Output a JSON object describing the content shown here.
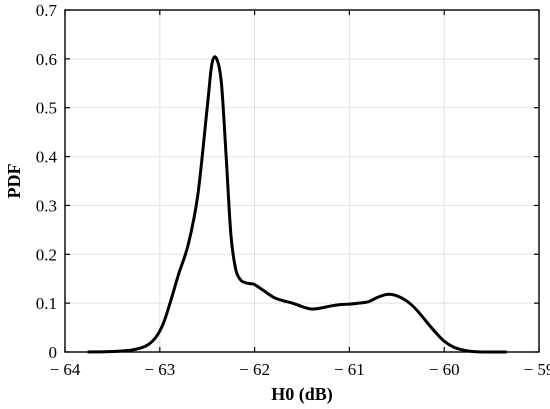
{
  "chart_data": {
    "type": "line",
    "title": "",
    "xlabel": "H0 (dB)",
    "ylabel": "PDF",
    "xlim": [
      -64,
      -59
    ],
    "ylim": [
      0,
      0.7
    ],
    "grid": true,
    "legend": "none",
    "line_color": "#000000",
    "x_ticks": [
      {
        "value": -64,
        "label": "− 64"
      },
      {
        "value": -63,
        "label": "− 63"
      },
      {
        "value": -62,
        "label": "− 62"
      },
      {
        "value": -61,
        "label": "− 61"
      },
      {
        "value": -60,
        "label": "− 60"
      },
      {
        "value": -59,
        "label": "− 59"
      }
    ],
    "y_ticks": [
      {
        "value": 0,
        "label": "0"
      },
      {
        "value": 0.1,
        "label": "0.1"
      },
      {
        "value": 0.2,
        "label": "0.2"
      },
      {
        "value": 0.3,
        "label": "0.3"
      },
      {
        "value": 0.4,
        "label": "0.4"
      },
      {
        "value": 0.5,
        "label": "0.5"
      },
      {
        "value": 0.6,
        "label": "0.6"
      },
      {
        "value": 0.7,
        "label": "0.7"
      }
    ],
    "series": [
      {
        "x": [
          -63.75,
          -63.5,
          -63.3,
          -63.15,
          -63.05,
          -62.97,
          -62.9,
          -62.8,
          -62.7,
          -62.6,
          -62.5,
          -62.45,
          -62.4,
          -62.35,
          -62.3,
          -62.25,
          -62.2,
          -62.15,
          -62.1,
          -62.05,
          -62.0,
          -61.9,
          -61.8,
          -61.7,
          -61.6,
          -61.5,
          -61.4,
          -61.3,
          -61.2,
          -61.1,
          -61.0,
          -60.9,
          -60.8,
          -60.7,
          -60.6,
          -60.5,
          -60.4,
          -60.3,
          -60.2,
          -60.1,
          -60.0,
          -59.9,
          -59.8,
          -59.7,
          -59.6,
          -59.5,
          -59.35
        ],
        "y": [
          0.0,
          0.001,
          0.004,
          0.012,
          0.028,
          0.055,
          0.095,
          0.16,
          0.22,
          0.32,
          0.5,
          0.59,
          0.6,
          0.55,
          0.4,
          0.24,
          0.17,
          0.148,
          0.142,
          0.14,
          0.138,
          0.125,
          0.112,
          0.105,
          0.1,
          0.093,
          0.088,
          0.09,
          0.094,
          0.097,
          0.098,
          0.1,
          0.103,
          0.112,
          0.118,
          0.115,
          0.105,
          0.088,
          0.065,
          0.042,
          0.022,
          0.01,
          0.004,
          0.001,
          0.0,
          0.0,
          0.0
        ]
      }
    ]
  }
}
